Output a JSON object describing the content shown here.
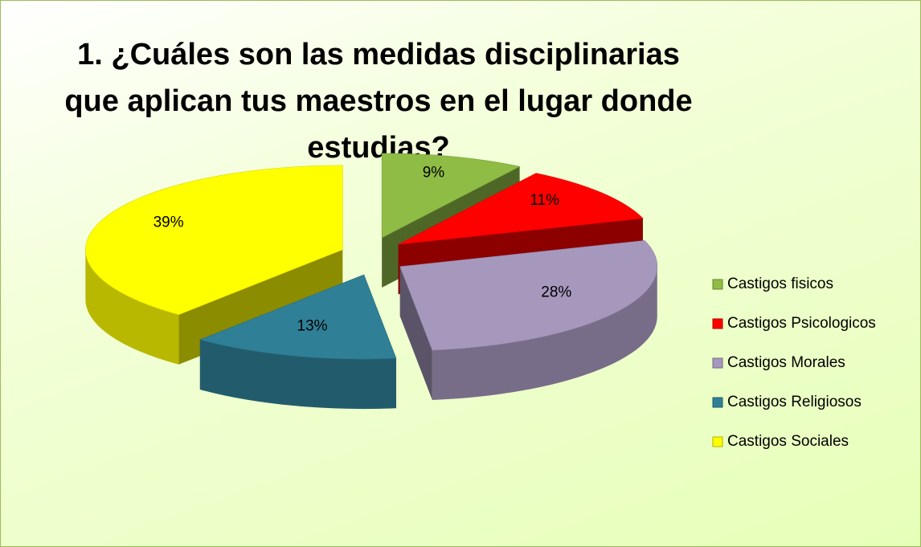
{
  "chart_data": {
    "type": "pie",
    "title": "1. ¿Cuáles son las medidas disciplinarias que aplican tus maestros en el lugar donde estudias?",
    "categories": [
      "Castigos fisicos",
      "Castigos Psicologicos",
      "Castigos Morales",
      "Castigos Religiosos",
      "Castigos Sociales"
    ],
    "values": [
      9,
      11,
      28,
      13,
      39
    ],
    "value_labels": [
      "9%",
      "11%",
      "28%",
      "13%",
      "39%"
    ],
    "colors": [
      "#8fbc45",
      "#ff0000",
      "#a698bd",
      "#2f8096",
      "#ffff00"
    ],
    "legend": "right"
  }
}
